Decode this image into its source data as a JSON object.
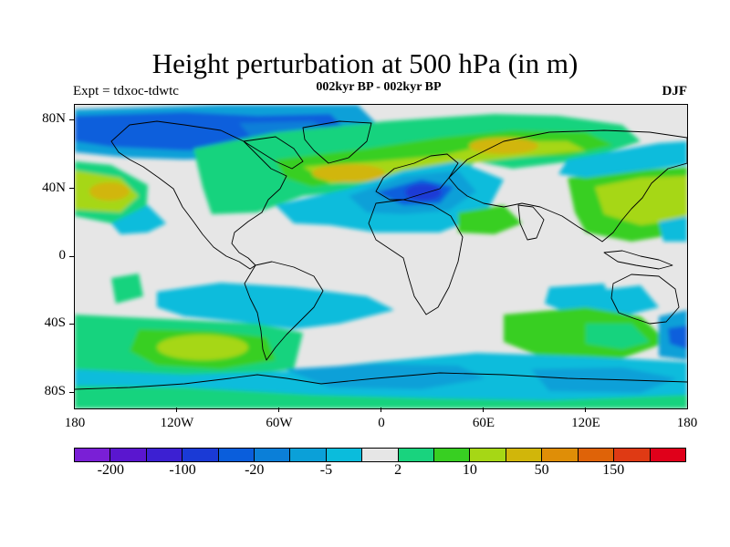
{
  "title": "Height perturbation at 500 hPa (in m)",
  "subtitle": "002kyr BP - 002kyr BP",
  "experiment": "Expt = tdxoc-tdwtc",
  "season": "DJF",
  "y_ticks": [
    {
      "lat": 80,
      "label": "80N"
    },
    {
      "lat": 40,
      "label": "40N"
    },
    {
      "lat": 0,
      "label": "0"
    },
    {
      "lat": -40,
      "label": "40S"
    },
    {
      "lat": -80,
      "label": "80S"
    }
  ],
  "x_ticks": [
    {
      "lon": -180,
      "label": "180"
    },
    {
      "lon": -120,
      "label": "120W"
    },
    {
      "lon": -60,
      "label": "60W"
    },
    {
      "lon": 0,
      "label": "0"
    },
    {
      "lon": 60,
      "label": "60E"
    },
    {
      "lon": 120,
      "label": "120E"
    },
    {
      "lon": 180,
      "label": "180"
    }
  ],
  "colorbar": {
    "colors": [
      "#7a1fd6",
      "#5a16cf",
      "#3c20d2",
      "#1a3ad6",
      "#0a5edc",
      "#0b7fd8",
      "#0ba0d8",
      "#0bbcdc",
      "#e6e6e6",
      "#19d37e",
      "#38cf22",
      "#a6d715",
      "#d1b60a",
      "#df8e07",
      "#df6308",
      "#df3a14",
      "#e0001a"
    ],
    "labels": [
      {
        "boundary": 1,
        "text": "-200"
      },
      {
        "boundary": 3,
        "text": "-100"
      },
      {
        "boundary": 5,
        "text": "-20"
      },
      {
        "boundary": 7,
        "text": "-5"
      },
      {
        "boundary": 9,
        "text": "2"
      },
      {
        "boundary": 11,
        "text": "10"
      },
      {
        "boundary": 13,
        "text": "50"
      },
      {
        "boundary": 15,
        "text": "150"
      }
    ]
  },
  "colors": {
    "background": "#e6e6e6",
    "coastline": "#000000"
  }
}
